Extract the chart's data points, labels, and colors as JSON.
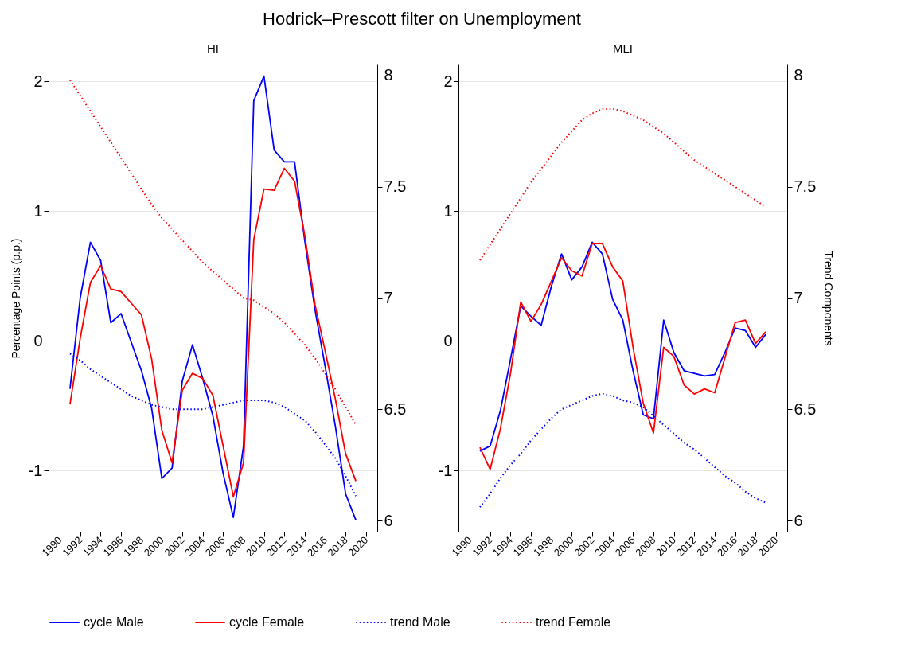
{
  "chart_data": [
    {
      "type": "line",
      "title": "Hodrick–Prescott filter on Unemployment",
      "subtitle": "HI",
      "ylabel": "Percentage Points (p.p.)",
      "x": [
        1991,
        1992,
        1993,
        1994,
        1995,
        1996,
        1997,
        1998,
        1999,
        2000,
        2001,
        2002,
        2003,
        2004,
        2005,
        2006,
        2007,
        2008,
        2009,
        2010,
        2011,
        2012,
        2013,
        2014,
        2015,
        2016,
        2017,
        2018,
        2019
      ],
      "series": [
        {
          "name": "cycle Male",
          "color": "#0000ff",
          "line_style": "solid",
          "values": [
            -0.37,
            0.33,
            0.76,
            0.62,
            0.14,
            0.21,
            -0.01,
            -0.23,
            -0.52,
            -1.06,
            -0.98,
            -0.31,
            -0.03,
            -0.29,
            -0.58,
            -1.02,
            -1.36,
            -0.81,
            1.85,
            2.04,
            1.47,
            1.38,
            1.38,
            0.77,
            0.24,
            -0.2,
            -0.66,
            -1.18,
            -1.38
          ]
        },
        {
          "name": "cycle Female",
          "color": "#ff0000",
          "line_style": "solid",
          "values": [
            -0.49,
            0.02,
            0.45,
            0.58,
            0.4,
            0.38,
            0.29,
            0.2,
            -0.14,
            -0.69,
            -0.94,
            -0.38,
            -0.25,
            -0.29,
            -0.42,
            -0.81,
            -1.2,
            -0.94,
            0.78,
            1.17,
            1.16,
            1.33,
            1.23,
            0.81,
            0.28,
            -0.08,
            -0.45,
            -0.87,
            -1.08
          ]
        },
        {
          "name": "trend Male",
          "color": "#0000ff",
          "line_style": "dotted",
          "axis": "y2",
          "values": [
            6.75,
            6.72,
            6.68,
            6.65,
            6.62,
            6.59,
            6.56,
            6.54,
            6.52,
            6.51,
            6.5,
            6.5,
            6.5,
            6.5,
            6.51,
            6.52,
            6.53,
            6.54,
            6.54,
            6.54,
            6.53,
            6.51,
            6.48,
            6.45,
            6.4,
            6.34,
            6.28,
            6.2,
            6.11
          ]
        },
        {
          "name": "trend Female",
          "color": "#ff0000",
          "line_style": "dotted",
          "axis": "y2",
          "values": [
            7.98,
            7.91,
            7.84,
            7.77,
            7.7,
            7.63,
            7.56,
            7.49,
            7.42,
            7.36,
            7.31,
            7.26,
            7.21,
            7.16,
            7.12,
            7.08,
            7.04,
            7.0,
            6.99,
            6.96,
            6.93,
            6.89,
            6.84,
            6.79,
            6.73,
            6.66,
            6.59,
            6.51,
            6.43
          ]
        }
      ],
      "xlim": [
        1988.9,
        2021.1
      ],
      "xticks": [
        1990,
        1992,
        1994,
        1996,
        1998,
        2000,
        2002,
        2004,
        2006,
        2008,
        2010,
        2012,
        2014,
        2016,
        2018,
        2020
      ],
      "ylim": [
        -1.47,
        2.13
      ],
      "yticks": [
        -1,
        0,
        1,
        2
      ],
      "y2lim": [
        5.95,
        8.05
      ],
      "y2ticks": [
        6,
        6.5,
        7,
        7.5,
        8
      ],
      "grid": "y",
      "legend": "bottom"
    },
    {
      "type": "line",
      "subtitle": "MLI",
      "y2label": "Trend Components",
      "x": [
        1991,
        1992,
        1993,
        1994,
        1995,
        1996,
        1997,
        1998,
        1999,
        2000,
        2001,
        2002,
        2003,
        2004,
        2005,
        2006,
        2007,
        2008,
        2009,
        2010,
        2011,
        2012,
        2013,
        2014,
        2015,
        2016,
        2017,
        2018,
        2019
      ],
      "series": [
        {
          "name": "cycle Male",
          "color": "#0000ff",
          "line_style": "solid",
          "values": [
            -0.85,
            -0.81,
            -0.54,
            -0.14,
            0.27,
            0.19,
            0.12,
            0.42,
            0.67,
            0.47,
            0.57,
            0.76,
            0.67,
            0.32,
            0.16,
            -0.23,
            -0.57,
            -0.6,
            0.16,
            -0.09,
            -0.23,
            -0.25,
            -0.27,
            -0.26,
            -0.09,
            0.1,
            0.08,
            -0.05,
            0.05
          ]
        },
        {
          "name": "cycle Female",
          "color": "#ff0000",
          "line_style": "solid",
          "values": [
            -0.82,
            -0.99,
            -0.68,
            -0.25,
            0.3,
            0.15,
            0.28,
            0.46,
            0.64,
            0.54,
            0.5,
            0.75,
            0.75,
            0.57,
            0.46,
            -0.05,
            -0.48,
            -0.71,
            -0.05,
            -0.12,
            -0.34,
            -0.41,
            -0.37,
            -0.4,
            -0.13,
            0.14,
            0.16,
            -0.02,
            0.07
          ]
        },
        {
          "name": "trend Male",
          "color": "#0000ff",
          "line_style": "dotted",
          "axis": "y2",
          "values": [
            6.06,
            6.12,
            6.19,
            6.25,
            6.3,
            6.36,
            6.41,
            6.46,
            6.5,
            6.52,
            6.54,
            6.56,
            6.57,
            6.56,
            6.54,
            6.53,
            6.51,
            6.47,
            6.43,
            6.39,
            6.35,
            6.32,
            6.28,
            6.24,
            6.2,
            6.17,
            6.13,
            6.1,
            6.08
          ]
        },
        {
          "name": "trend Female",
          "color": "#ff0000",
          "line_style": "dotted",
          "axis": "y2",
          "values": [
            7.17,
            7.24,
            7.31,
            7.38,
            7.45,
            7.52,
            7.58,
            7.64,
            7.7,
            7.75,
            7.8,
            7.83,
            7.85,
            7.85,
            7.84,
            7.82,
            7.8,
            7.77,
            7.74,
            7.7,
            7.66,
            7.62,
            7.59,
            7.56,
            7.53,
            7.5,
            7.47,
            7.44,
            7.41
          ]
        }
      ],
      "xlim": [
        1988.9,
        2021.1
      ],
      "xticks": [
        1990,
        1992,
        1994,
        1996,
        1998,
        2000,
        2002,
        2004,
        2006,
        2008,
        2010,
        2012,
        2014,
        2016,
        2018,
        2020
      ],
      "ylim": [
        -1.47,
        2.13
      ],
      "yticks": [
        -1,
        0,
        1,
        2
      ],
      "y2lim": [
        5.95,
        8.05
      ],
      "y2ticks": [
        6,
        6.5,
        7,
        7.5,
        8
      ],
      "grid": "y",
      "legend": "bottom"
    }
  ]
}
